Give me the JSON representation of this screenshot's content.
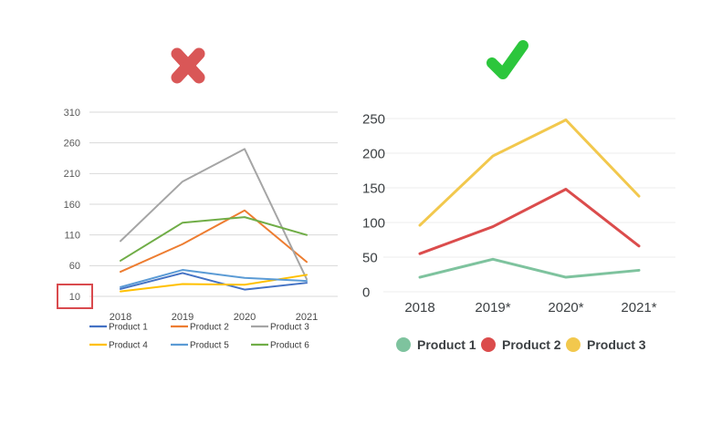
{
  "page": {
    "background": "#ffffff"
  },
  "marks": {
    "cross": {
      "icon": "cross-mark",
      "color": "#D95757"
    },
    "check": {
      "icon": "check-mark",
      "color": "#2CC63C"
    }
  },
  "chart_data": [
    {
      "id": "bad",
      "type": "line",
      "title": "",
      "categories": [
        "2018",
        "2019",
        "2020",
        "2021"
      ],
      "y_tick_labels": [
        "310",
        "260",
        "210",
        "160",
        "110",
        "60",
        "10"
      ],
      "ylim": [
        10,
        310
      ],
      "grid": true,
      "legend_position": "bottom",
      "legend_style": "line",
      "highlighted_tick": {
        "label": "10",
        "box_color": "#D94A4E"
      },
      "series": [
        {
          "name": "Product 1",
          "color": "#4472C4",
          "values": [
            22,
            48,
            21,
            32
          ]
        },
        {
          "name": "Product 2",
          "color": "#ED7D31",
          "values": [
            50,
            95,
            150,
            66
          ]
        },
        {
          "name": "Product 3",
          "color": "#A5A5A5",
          "values": [
            100,
            197,
            250,
            38
          ]
        },
        {
          "name": "Product 4",
          "color": "#FFC000",
          "values": [
            18,
            30,
            29,
            45
          ]
        },
        {
          "name": "Product 5",
          "color": "#5B9BD5",
          "values": [
            25,
            53,
            40,
            35
          ]
        },
        {
          "name": "Product 6",
          "color": "#70AD47",
          "values": [
            68,
            130,
            139,
            110
          ]
        }
      ]
    },
    {
      "id": "good",
      "type": "line",
      "title": "",
      "categories": [
        "2018",
        "2019*",
        "2020*",
        "2021*"
      ],
      "y_tick_labels": [
        "250",
        "200",
        "150",
        "100",
        "50",
        "0"
      ],
      "ylim": [
        0,
        250
      ],
      "grid": true,
      "legend_position": "bottom",
      "legend_style": "dot",
      "series": [
        {
          "name": "Product 1",
          "color": "#7EC39E",
          "values": [
            21,
            47,
            21,
            31
          ]
        },
        {
          "name": "Product 2",
          "color": "#DB4C4C",
          "values": [
            55,
            94,
            148,
            66
          ]
        },
        {
          "name": "Product 3",
          "color": "#F2C84D",
          "values": [
            96,
            196,
            248,
            138
          ]
        }
      ]
    }
  ]
}
